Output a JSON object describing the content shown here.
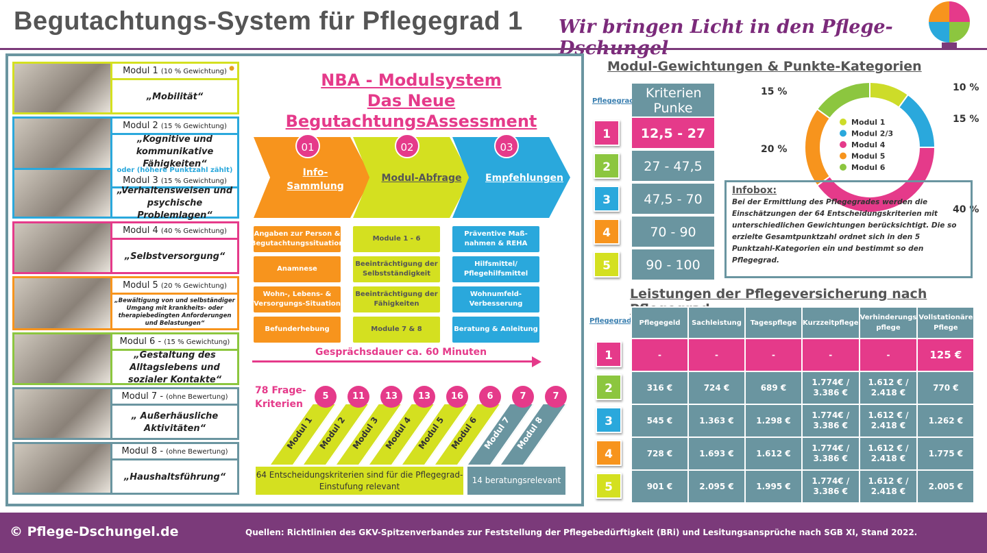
{
  "header": {
    "title": "Begutachtungs-System für Pflegegrad 1",
    "slogan": "Wir bringen Licht in den Pflege-Dschungel"
  },
  "modules": [
    {
      "name": "Modul 1",
      "weight": "(10 % Gewichtung)",
      "desc": "„Mobilität“"
    },
    {
      "name": "Modul 2",
      "weight": "(15 % Gewichtung)",
      "desc": "„Kognitive und kommunikative Fähigkeiten“"
    },
    {
      "name": "Modul 3",
      "weight": "(15 % Gewichtung)",
      "desc": "„Verhaltensweisen und psychische Problemlagen“",
      "note": "oder (höhere Punktzahl zählt)"
    },
    {
      "name": "Modul 4",
      "weight": "(40 % Gewichtung)",
      "desc": "„Selbstversorgung“"
    },
    {
      "name": "Modul 5",
      "weight": "(20 % Gewichtung)",
      "desc": "„Bewältigung von und selbständiger Umgang mit krankheits- oder therapiebedingten Anforderungen und Belastungen“"
    },
    {
      "name": "Modul 6 -",
      "weight": "(15 % Gewichtung)",
      "desc": "„Gestaltung des Alltagslebens und sozialer Kontakte“"
    },
    {
      "name": "Modul 7 -",
      "weight": "(ohne Bewertung)",
      "desc": "„ Außerhäusliche Aktivitäten“"
    },
    {
      "name": "Modul 8 -",
      "weight": "(ohne Bewertung)",
      "desc": "„Haushaltsführung“"
    }
  ],
  "nba": {
    "title1": "NBA - Modulsystem",
    "title2": "Das Neue BegutachtungsAssessment",
    "steps": [
      {
        "num": "01",
        "label": "Info-Sammlung"
      },
      {
        "num": "02",
        "label": "Modul-Abfrage"
      },
      {
        "num": "03",
        "label": "Empfehlungen"
      }
    ],
    "col1": [
      "Angaben zur Person & Begutachtungssituation",
      "Anamnese",
      "Wohn-, Lebens- & Versorgungs-Situation",
      "Befunderhebung"
    ],
    "col2": [
      "Module 1 - 6",
      "Beeinträchtigung der Selbstständigkeit",
      "Beeinträchtigung der Fähigkeiten",
      "Module 7 & 8"
    ],
    "col3": [
      "Präventive Maß-nahmen & REHA",
      "Hilfsmittel/ Pflegehilfsmittel",
      "Wohnumfeld-Verbesserung",
      "Beratung & Anleitung"
    ],
    "duration": "Gesprächsdauer ca. 60 Minuten",
    "frage": "78 Frage-Kriterien",
    "bars": [
      {
        "label": "Modul 1",
        "count": "5"
      },
      {
        "label": "Modul 2",
        "count": "11"
      },
      {
        "label": "Modul 3",
        "count": "13"
      },
      {
        "label": "Modul 4",
        "count": "13"
      },
      {
        "label": "Modul 5",
        "count": "16"
      },
      {
        "label": "Modul 6",
        "count": "6"
      },
      {
        "label": "Modul 7",
        "count": "7"
      },
      {
        "label": "Modul 8",
        "count": "7"
      }
    ],
    "relevant": "64 Entscheidungskriterien sind für die Pflegegrad-Einstufung relevant",
    "beratung": "14 beratungsrelevant"
  },
  "punkte": {
    "title": "Modul-Gewichtungen & Punkte-Kategorien",
    "pg_label": "Pflegegrad",
    "header": "Kriterien Punke",
    "rows": [
      {
        "pg": "1",
        "range": "12,5  - 27"
      },
      {
        "pg": "2",
        "range": "27 - 47,5"
      },
      {
        "pg": "3",
        "range": "47,5 - 70"
      },
      {
        "pg": "4",
        "range": "70 - 90"
      },
      {
        "pg": "5",
        "range": "90 - 100"
      }
    ]
  },
  "chart_data": {
    "type": "pie",
    "title": "Modul-Gewichtungen",
    "legend_position": "center",
    "categories": [
      "Modul 1",
      "Modul 2/3",
      "Modul 4",
      "Modul 5",
      "Modul 6"
    ],
    "values": [
      10,
      15,
      40,
      20,
      15
    ],
    "labels": [
      "10 %",
      "15 %",
      "40 %",
      "20 %",
      "15 %"
    ],
    "colors": [
      "#cddc29",
      "#2aa8dc",
      "#e53a8a",
      "#f7941d",
      "#8cc63f"
    ]
  },
  "infobox": {
    "title": "Infobox:",
    "text": "Bei der Ermittlung des Pflegegrades werden die Einschätzungen der 64 Entscheidungskriterien mit unterschiedlichen Gewichtungen berücksichtigt. Die so erzielte Gesamtpunktzahl ordnet sich in den 5 Punktzahl-Kategorien ein und bestimmt so den Pflegegrad."
  },
  "leistungen": {
    "title": "Leistungen der Pflegeversicherung nach Pflegegrad",
    "pg_label": "Pflegegrad",
    "columns": [
      "Pflegegeld",
      "Sachleistung",
      "Tagespflege",
      "Kurzzeitpflege",
      "Verhinderungs pflege",
      "Vollstationäre Pflege"
    ],
    "rows": [
      {
        "pg": "1",
        "cells": [
          "-",
          "-",
          "-",
          "-",
          "-",
          "125 €"
        ]
      },
      {
        "pg": "2",
        "cells": [
          "316 €",
          "724 €",
          "689 €",
          "1.774€ / 3.386 €",
          "1.612 € / 2.418 €",
          "770 €"
        ]
      },
      {
        "pg": "3",
        "cells": [
          "545 €",
          "1.363 €",
          "1.298 €",
          "1.774€ / 3.386 €",
          "1.612 € / 2.418 €",
          "1.262 €"
        ]
      },
      {
        "pg": "4",
        "cells": [
          "728 €",
          "1.693 €",
          "1.612 €",
          "1.774€ / 3.386 €",
          "1.612 € / 2.418 €",
          "1.775 €"
        ]
      },
      {
        "pg": "5",
        "cells": [
          "901 €",
          "2.095 €",
          "1.995 €",
          "1.774€ / 3.386 €",
          "1.612 € / 2.418 €",
          "2.005 €"
        ]
      }
    ]
  },
  "colors": {
    "pg": [
      "#e53a8a",
      "#8cc63f",
      "#2aa8dc",
      "#f7941d",
      "#d4e020"
    ]
  },
  "footer": {
    "copyright": "© Pflege-Dschungel.de",
    "source": "Quellen: Richtlinien des GKV-Spitzenverbandes zur Feststellung der Pflegebedürftigkeit (BRi) und Lesitungsansprüche nach SGB XI, Stand 2022."
  }
}
